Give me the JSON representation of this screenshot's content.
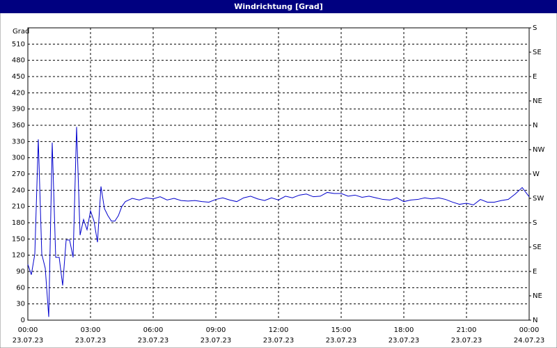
{
  "window_title": "Windrichtung [Grad]",
  "chart_data": {
    "type": "line",
    "ylabel": "Grad",
    "x": [
      0,
      10,
      20,
      30,
      40,
      50,
      60,
      70,
      80,
      90,
      100,
      110,
      120,
      130,
      140,
      150,
      160,
      170,
      180,
      190,
      200,
      210,
      220,
      230,
      240,
      250,
      260,
      270,
      280,
      290,
      300,
      320,
      340,
      360,
      380,
      400,
      420,
      440,
      460,
      480,
      500,
      520,
      540,
      560,
      580,
      600,
      620,
      640,
      660,
      680,
      700,
      720,
      740,
      760,
      780,
      800,
      820,
      840,
      860,
      880,
      900,
      920,
      940,
      960,
      980,
      1000,
      1020,
      1040,
      1060,
      1080,
      1100,
      1120,
      1140,
      1160,
      1180,
      1200,
      1220,
      1240,
      1260,
      1280,
      1300,
      1320,
      1340,
      1360,
      1380,
      1400,
      1420,
      1440
    ],
    "series": [
      {
        "color": "#0000cc",
        "values": [
          103,
          84,
          122,
          334,
          122,
          96,
          6,
          328,
          116,
          116,
          64,
          148,
          148,
          116,
          357,
          157,
          186,
          167,
          202,
          183,
          144,
          247,
          206,
          193,
          183,
          183,
          193,
          210,
          219,
          222,
          225,
          222,
          226,
          224,
          228,
          222,
          225,
          221,
          220,
          221,
          219,
          218,
          223,
          226,
          222,
          219,
          226,
          229,
          224,
          221,
          226,
          222,
          229,
          226,
          231,
          233,
          228,
          229,
          236,
          234,
          234,
          229,
          231,
          227,
          229,
          226,
          223,
          222,
          226,
          219,
          222,
          223,
          226,
          224,
          226,
          223,
          218,
          214,
          216,
          213,
          223,
          218,
          218,
          221,
          223,
          233,
          245,
          228
        ]
      }
    ],
    "xlim": [
      0,
      1440
    ],
    "xticks": [
      {
        "value": 0,
        "label": "00:00"
      },
      {
        "value": 180,
        "label": "03:00"
      },
      {
        "value": 360,
        "label": "06:00"
      },
      {
        "value": 540,
        "label": "09:00"
      },
      {
        "value": 720,
        "label": "12:00"
      },
      {
        "value": 900,
        "label": "15:00"
      },
      {
        "value": 1080,
        "label": "18:00"
      },
      {
        "value": 1260,
        "label": "21:00"
      },
      {
        "value": 1440,
        "label": "00:00"
      }
    ],
    "xtick_dates": [
      "23.07.23",
      "23.07.23",
      "23.07.23",
      "23.07.23",
      "23.07.23",
      "23.07.23",
      "23.07.23",
      "23.07.23",
      "24.07.23"
    ],
    "ylim": [
      0,
      540
    ],
    "yticks": [
      0,
      30,
      60,
      90,
      120,
      150,
      180,
      210,
      240,
      270,
      300,
      330,
      360,
      390,
      420,
      450,
      480,
      510
    ],
    "y2lim": [
      0,
      540
    ],
    "y2ticks": [
      {
        "value": 0,
        "label": "N"
      },
      {
        "value": 45,
        "label": "NE"
      },
      {
        "value": 90,
        "label": "E"
      },
      {
        "value": 135,
        "label": "SE"
      },
      {
        "value": 180,
        "label": "S"
      },
      {
        "value": 225,
        "label": "SW"
      },
      {
        "value": 270,
        "label": "W"
      },
      {
        "value": 315,
        "label": "NW"
      },
      {
        "value": 360,
        "label": "N"
      },
      {
        "value": 405,
        "label": "NE"
      },
      {
        "value": 450,
        "label": "E"
      },
      {
        "value": 495,
        "label": "SE"
      },
      {
        "value": 540,
        "label": "S"
      }
    ],
    "grid": true
  }
}
